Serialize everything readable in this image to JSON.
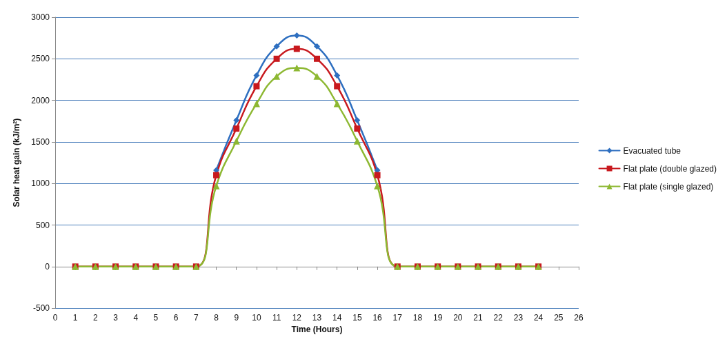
{
  "chart_data": {
    "type": "line",
    "xlabel": "Time (Hours)",
    "ylabel": "Solar heat gain (kJ/m²)",
    "x": [
      1,
      2,
      3,
      4,
      5,
      6,
      7,
      8,
      9,
      10,
      11,
      12,
      13,
      14,
      15,
      16,
      17,
      18,
      19,
      20,
      21,
      22,
      23,
      24
    ],
    "xlim": [
      0,
      26
    ],
    "xticks": [
      0,
      1,
      2,
      3,
      4,
      5,
      6,
      7,
      8,
      9,
      10,
      11,
      12,
      13,
      14,
      15,
      16,
      17,
      18,
      19,
      20,
      21,
      22,
      23,
      24,
      25,
      26
    ],
    "ylim": [
      -500,
      3000
    ],
    "yticks": [
      -500,
      0,
      500,
      1000,
      1500,
      2000,
      2500,
      3000
    ],
    "grid": "y",
    "legend": "right",
    "line_style": "solid",
    "series": [
      {
        "name": "Evacuated tube",
        "color": "#2e6fc0",
        "marker": "diamond",
        "values": [
          null,
          null,
          null,
          null,
          null,
          null,
          null,
          1160,
          1760,
          2300,
          2650,
          2780,
          2650,
          2300,
          1760,
          1160,
          null,
          null,
          null,
          null,
          null,
          null,
          null,
          null
        ]
      },
      {
        "name": "Flat plate (double glazed)",
        "color": "#c8191e",
        "marker": "square",
        "values": [
          0,
          0,
          0,
          0,
          0,
          0,
          0,
          1100,
          1660,
          2170,
          2500,
          2620,
          2500,
          2170,
          1660,
          1100,
          0,
          0,
          0,
          0,
          0,
          0,
          0,
          0
        ]
      },
      {
        "name": "Flat plate (single glazed)",
        "color": "#8db832",
        "marker": "triangle",
        "values": [
          0,
          0,
          0,
          0,
          0,
          0,
          0,
          970,
          1510,
          1960,
          2290,
          2390,
          2290,
          1960,
          1510,
          970,
          0,
          0,
          0,
          0,
          0,
          0,
          0,
          0
        ]
      }
    ]
  }
}
